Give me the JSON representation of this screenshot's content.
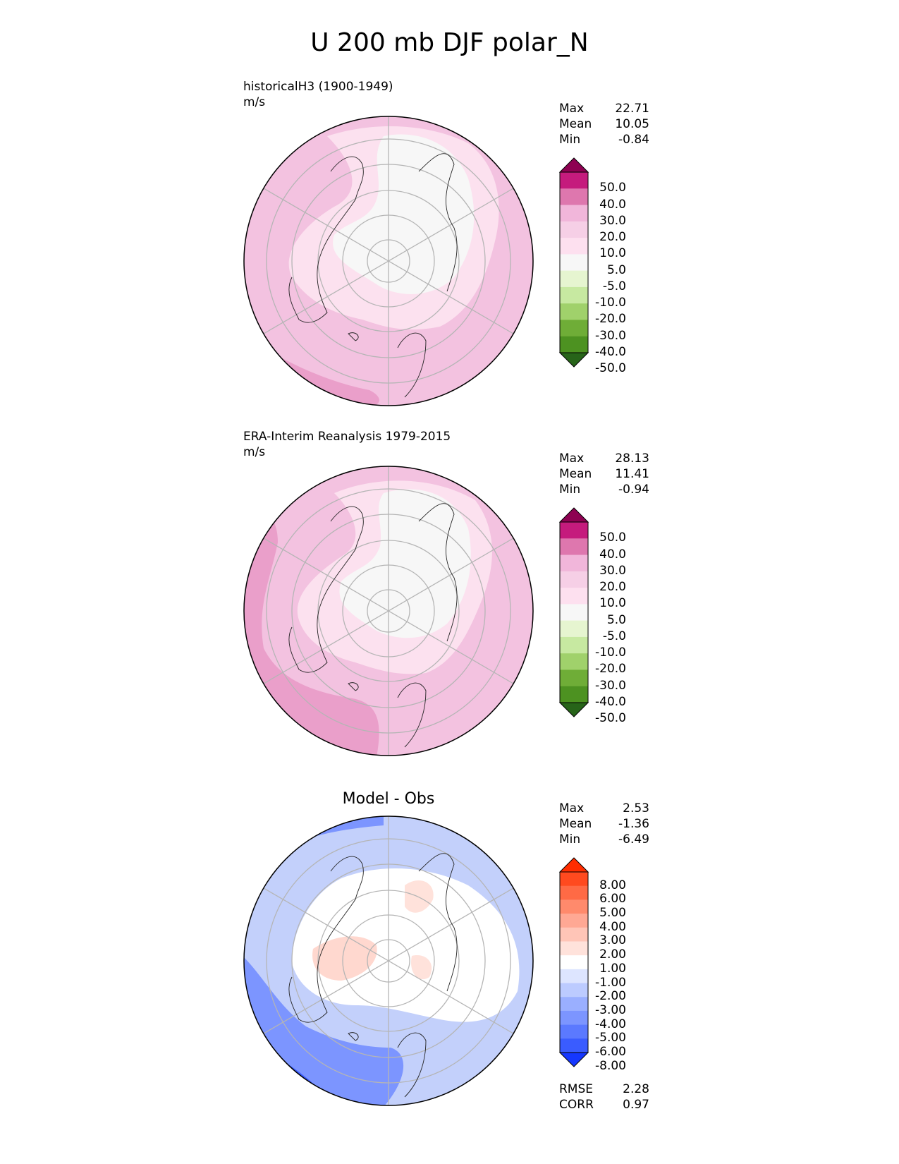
{
  "title": "U 200 mb DJF polar_N",
  "panels": [
    {
      "id": "model",
      "title": "historicalH3 (1900-1949)",
      "units": "m/s",
      "stats": [
        {
          "label": "Max",
          "value": "22.71"
        },
        {
          "label": "Mean",
          "value": "10.05"
        },
        {
          "label": "Min",
          "value": "-0.84"
        }
      ],
      "colorbar": {
        "labels": [
          "50.0",
          "40.0",
          "30.0",
          "20.0",
          "10.0",
          "5.0",
          "-5.0",
          "-10.0",
          "-20.0",
          "-30.0",
          "-40.0",
          "-50.0"
        ],
        "colors": [
          "#8e0152",
          "#c51b7d",
          "#de77ae",
          "#f1b6da",
          "#f6cfe6",
          "#fde0ef",
          "#f7f7f7",
          "#e6f5d0",
          "#c7e9a1",
          "#a0d16b",
          "#6fad37",
          "#4d9221",
          "#276419"
        ]
      }
    },
    {
      "id": "obs",
      "title": "ERA-Interim Reanalysis 1979-2015",
      "units": "m/s",
      "stats": [
        {
          "label": "Max",
          "value": "28.13"
        },
        {
          "label": "Mean",
          "value": "11.41"
        },
        {
          "label": "Min",
          "value": "-0.94"
        }
      ],
      "colorbar": {
        "labels": [
          "50.0",
          "40.0",
          "30.0",
          "20.0",
          "10.0",
          "5.0",
          "-5.0",
          "-10.0",
          "-20.0",
          "-30.0",
          "-40.0",
          "-50.0"
        ],
        "colors": [
          "#8e0152",
          "#c51b7d",
          "#de77ae",
          "#f1b6da",
          "#f6cfe6",
          "#fde0ef",
          "#f7f7f7",
          "#e6f5d0",
          "#c7e9a1",
          "#a0d16b",
          "#6fad37",
          "#4d9221",
          "#276419"
        ]
      }
    },
    {
      "id": "diff",
      "title": "Model - Obs",
      "stats": [
        {
          "label": "Max",
          "value": "2.53"
        },
        {
          "label": "Mean",
          "value": "-1.36"
        },
        {
          "label": "Min",
          "value": "-6.49"
        }
      ],
      "extra_stats": [
        {
          "label": "RMSE",
          "value": "2.28"
        },
        {
          "label": "CORR",
          "value": "0.97"
        }
      ],
      "colorbar": {
        "labels": [
          "8.00",
          "6.00",
          "5.00",
          "4.00",
          "3.00",
          "2.00",
          "1.00",
          "-1.00",
          "-2.00",
          "-3.00",
          "-4.00",
          "-5.00",
          "-6.00",
          "-8.00"
        ],
        "colors": [
          "#ff2d00",
          "#ff4a1f",
          "#ff6a45",
          "#ff8a6c",
          "#ffa894",
          "#ffc5b7",
          "#ffe2db",
          "#ffffff",
          "#dde5ff",
          "#bccbff",
          "#9aafff",
          "#7c95ff",
          "#5b79ff",
          "#3a5cff",
          "#1537ff"
        ]
      }
    }
  ]
}
